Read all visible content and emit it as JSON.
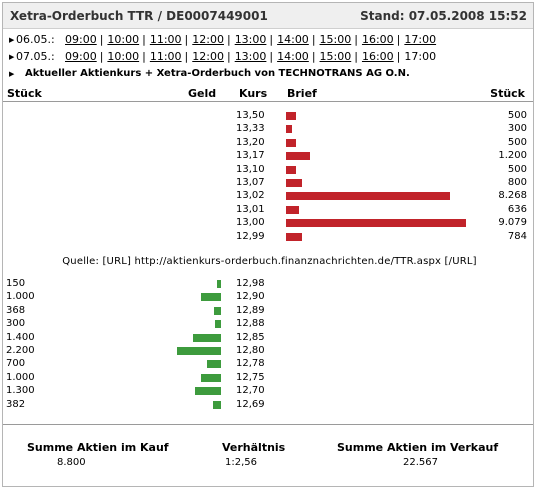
{
  "header": {
    "title": "Xetra-Orderbuch TTR / DE0007449001",
    "stand": "Stand: 07.05.2008 15:52"
  },
  "nav": {
    "rows": [
      {
        "date": "06.05.:",
        "times": [
          "09:00",
          "10:00",
          "11:00",
          "12:00",
          "13:00",
          "14:00",
          "15:00",
          "16:00",
          "17:00"
        ]
      },
      {
        "date": "07.05.:",
        "times": [
          "09:00",
          "10:00",
          "11:00",
          "12:00",
          "13:00",
          "14:00",
          "15:00",
          "16:00",
          "17:00"
        ]
      }
    ],
    "current_link": "Aktueller Aktienkurs + Xetra-Orderbuch von TECHNOTRANS AG O.N."
  },
  "columns": {
    "stueck": "Stück",
    "geld": "Geld",
    "kurs": "Kurs",
    "brief": "Brief",
    "stueck_right": "Stück"
  },
  "ask": [
    {
      "kurs": "13,50",
      "stueck": "500",
      "value": 500
    },
    {
      "kurs": "13,33",
      "stueck": "300",
      "value": 300
    },
    {
      "kurs": "13,20",
      "stueck": "500",
      "value": 500
    },
    {
      "kurs": "13,17",
      "stueck": "1.200",
      "value": 1200
    },
    {
      "kurs": "13,10",
      "stueck": "500",
      "value": 500
    },
    {
      "kurs": "13,07",
      "stueck": "800",
      "value": 800
    },
    {
      "kurs": "13,02",
      "stueck": "8.268",
      "value": 8268
    },
    {
      "kurs": "13,01",
      "stueck": "636",
      "value": 636
    },
    {
      "kurs": "13,00",
      "stueck": "9.079",
      "value": 9079
    },
    {
      "kurs": "12,99",
      "stueck": "784",
      "value": 784
    }
  ],
  "quelle": "Quelle: [URL] http://aktienkurs-orderbuch.finanznachrichten.de/TTR.aspx [/URL]",
  "bid": [
    {
      "kurs": "12,98",
      "stueck": "150",
      "value": 150
    },
    {
      "kurs": "12,90",
      "stueck": "1.000",
      "value": 1000
    },
    {
      "kurs": "12,89",
      "stueck": "368",
      "value": 368
    },
    {
      "kurs": "12,88",
      "stueck": "300",
      "value": 300
    },
    {
      "kurs": "12,85",
      "stueck": "1.400",
      "value": 1400
    },
    {
      "kurs": "12,80",
      "stueck": "2.200",
      "value": 2200
    },
    {
      "kurs": "12,78",
      "stueck": "700",
      "value": 700
    },
    {
      "kurs": "12,75",
      "stueck": "1.000",
      "value": 1000
    },
    {
      "kurs": "12,70",
      "stueck": "1.300",
      "value": 1300
    },
    {
      "kurs": "12,69",
      "stueck": "382",
      "value": 382
    }
  ],
  "summary": {
    "kauf_label": "Summe Aktien im Kauf",
    "kauf_value": "8.800",
    "verh_label": "Verhältnis",
    "verh_value": "1:2,56",
    "verkauf_label": "Summe Aktien im Verkauf",
    "verkauf_value": "22.567"
  },
  "colors": {
    "ask_bar": "#c1232a",
    "bid_bar": "#3d9b3d"
  }
}
